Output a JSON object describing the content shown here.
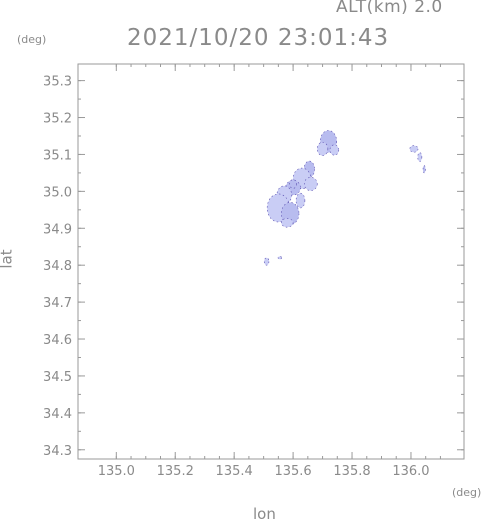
{
  "header": {
    "alt_label": "ALT(km) 2.0",
    "title": "2021/10/20 23:01:43"
  },
  "chart_data": {
    "type": "scatter",
    "title": "2021/10/20 23:01:43",
    "xlabel": "lon",
    "ylabel": "lat",
    "x_unit": "(deg)",
    "y_unit": "(deg)",
    "xlim": [
      134.87,
      136.18
    ],
    "ylim": [
      34.275,
      35.345
    ],
    "x_ticks": [
      "135.0",
      "135.2",
      "135.4",
      "135.6",
      "135.8",
      "136.0"
    ],
    "y_ticks": [
      "34.3",
      "34.4",
      "34.5",
      "34.6",
      "34.7",
      "34.8",
      "34.9",
      "35.0",
      "35.1",
      "35.2",
      "35.3"
    ],
    "grid": false,
    "colors": {
      "echo_fill": "#c9cdf5",
      "echo_core": "#b8bcef",
      "echo_edge": "#5a4fb0",
      "axis": "#9a9a9a",
      "text": "#8a8a8a"
    },
    "echo_cells": [
      {
        "lon": 135.72,
        "lat": 35.135,
        "rx": 0.028,
        "ry": 0.03
      },
      {
        "lon": 135.7,
        "lat": 35.115,
        "rx": 0.018,
        "ry": 0.018
      },
      {
        "lon": 135.74,
        "lat": 35.112,
        "rx": 0.015,
        "ry": 0.014
      },
      {
        "lon": 135.655,
        "lat": 35.06,
        "rx": 0.018,
        "ry": 0.022
      },
      {
        "lon": 135.63,
        "lat": 35.035,
        "rx": 0.03,
        "ry": 0.028
      },
      {
        "lon": 135.66,
        "lat": 35.02,
        "rx": 0.022,
        "ry": 0.018
      },
      {
        "lon": 135.6,
        "lat": 35.01,
        "rx": 0.025,
        "ry": 0.02
      },
      {
        "lon": 135.57,
        "lat": 34.99,
        "rx": 0.025,
        "ry": 0.025
      },
      {
        "lon": 135.55,
        "lat": 34.955,
        "rx": 0.038,
        "ry": 0.038
      },
      {
        "lon": 135.59,
        "lat": 34.94,
        "rx": 0.03,
        "ry": 0.03
      },
      {
        "lon": 135.58,
        "lat": 34.915,
        "rx": 0.02,
        "ry": 0.012
      },
      {
        "lon": 135.625,
        "lat": 34.975,
        "rx": 0.015,
        "ry": 0.02
      },
      {
        "lon": 135.6,
        "lat": 35.02,
        "rx": 0.012,
        "ry": 0.012
      },
      {
        "lon": 136.01,
        "lat": 35.115,
        "rx": 0.014,
        "ry": 0.009
      },
      {
        "lon": 136.03,
        "lat": 35.093,
        "rx": 0.007,
        "ry": 0.012
      },
      {
        "lon": 136.045,
        "lat": 35.06,
        "rx": 0.004,
        "ry": 0.01
      },
      {
        "lon": 135.51,
        "lat": 34.81,
        "rx": 0.008,
        "ry": 0.01
      },
      {
        "lon": 135.555,
        "lat": 34.82,
        "rx": 0.006,
        "ry": 0.004
      }
    ]
  }
}
